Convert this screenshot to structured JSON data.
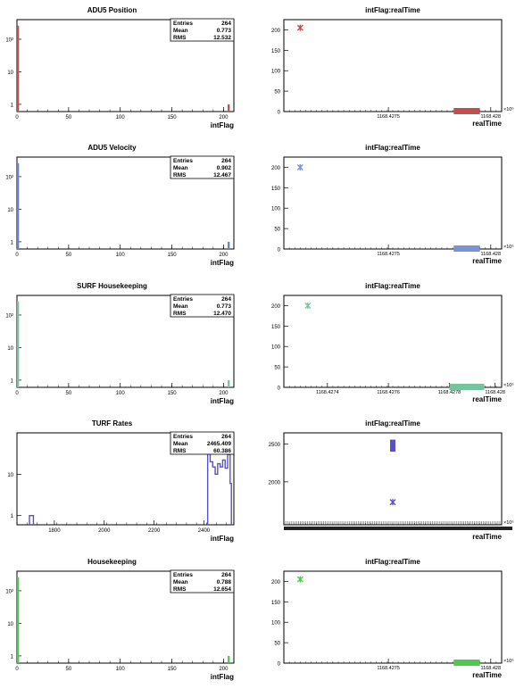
{
  "chart_data": [
    {
      "type": "bar",
      "title": "ADU5 Position",
      "xlabel": "intFlag",
      "ylabel": "",
      "log_y": true,
      "xlim": [
        0,
        210
      ],
      "ylim": [
        0.6,
        400
      ],
      "x_ticks": [
        0,
        50,
        100,
        150,
        200
      ],
      "y_ticks": [
        1,
        10,
        100
      ],
      "y_tick_labels": [
        "1",
        "10",
        "10²"
      ],
      "color": "#c0504d",
      "bins": [
        {
          "x0": 0,
          "x1": 2,
          "y": 260
        },
        {
          "x0": 204,
          "x1": 206,
          "y": 1
        }
      ],
      "stats": {
        "entries_label": "Entries",
        "entries": "264",
        "mean_label": "Mean",
        "mean": "0.773",
        "rms_label": "RMS",
        "rms": "12.532"
      }
    },
    {
      "type": "scatter",
      "title": "intFlag:realTime",
      "xlabel": "realTime",
      "ylabel": "",
      "xlim": [
        0,
        1
      ],
      "ylim": [
        0,
        225
      ],
      "y_ticks": [
        0,
        50,
        100,
        150,
        200
      ],
      "x_tick_labels": [
        {
          "label": "1168.4275",
          "pos": 0.48
        },
        {
          "label": "1168.428",
          "pos": 0.95
        }
      ],
      "exponent_label": "×10⁶",
      "color": "#c0504d",
      "points": [
        {
          "x": 0.075,
          "y": 205
        }
      ],
      "band": {
        "x0": 0.78,
        "x1": 0.9,
        "y": 0
      }
    },
    {
      "type": "bar",
      "title": "ADU5 Velocity",
      "xlabel": "intFlag",
      "ylabel": "",
      "log_y": true,
      "xlim": [
        0,
        210
      ],
      "ylim": [
        0.6,
        400
      ],
      "x_ticks": [
        0,
        50,
        100,
        150,
        200
      ],
      "y_ticks": [
        1,
        10,
        100
      ],
      "y_tick_labels": [
        "1",
        "10",
        "10²"
      ],
      "color": "#6a7fd0",
      "bins": [
        {
          "x0": 0,
          "x1": 2,
          "y": 260
        },
        {
          "x0": 204,
          "x1": 206,
          "y": 1
        }
      ],
      "stats": {
        "entries_label": "Entries",
        "entries": "264",
        "mean_label": "Mean",
        "mean": "0.902",
        "rms_label": "RMS",
        "rms": "12.467"
      }
    },
    {
      "type": "scatter",
      "title": "intFlag:realTime",
      "xlabel": "realTime",
      "ylabel": "",
      "xlim": [
        0,
        1
      ],
      "ylim": [
        0,
        225
      ],
      "y_ticks": [
        0,
        50,
        100,
        150,
        200
      ],
      "x_tick_labels": [
        {
          "label": "1168.4275",
          "pos": 0.48
        },
        {
          "label": "1168.428",
          "pos": 0.95
        }
      ],
      "exponent_label": "×10⁶",
      "color": "#7b93d6",
      "points": [
        {
          "x": 0.075,
          "y": 200
        }
      ],
      "band": {
        "x0": 0.78,
        "x1": 0.9,
        "y": 0
      }
    },
    {
      "type": "bar",
      "title": "SURF Housekeeping",
      "xlabel": "intFlag",
      "ylabel": "",
      "log_y": true,
      "xlim": [
        0,
        210
      ],
      "ylim": [
        0.6,
        400
      ],
      "x_ticks": [
        0,
        50,
        100,
        150,
        200
      ],
      "y_ticks": [
        1,
        10,
        100
      ],
      "y_tick_labels": [
        "1",
        "10",
        "10²"
      ],
      "color": "#76c49e",
      "bins": [
        {
          "x0": 0,
          "x1": 2,
          "y": 260
        },
        {
          "x0": 204,
          "x1": 206,
          "y": 1
        }
      ],
      "stats": {
        "entries_label": "Entries",
        "entries": "264",
        "mean_label": "Mean",
        "mean": "0.773",
        "rms_label": "RMS",
        "rms": "12.470"
      }
    },
    {
      "type": "scatter",
      "title": "intFlag:realTime",
      "xlabel": "realTime",
      "ylabel": "",
      "xlim": [
        0,
        1
      ],
      "ylim": [
        0,
        225
      ],
      "y_ticks": [
        0,
        50,
        100,
        150,
        200
      ],
      "x_tick_labels": [
        {
          "label": "1168.4274",
          "pos": 0.2
        },
        {
          "label": "1168.4276",
          "pos": 0.48
        },
        {
          "label": "1168.4278",
          "pos": 0.76
        },
        {
          "label": "1168.428",
          "pos": 0.97
        }
      ],
      "exponent_label": "×10⁶",
      "color": "#76c49e",
      "points": [
        {
          "x": 0.11,
          "y": 200
        }
      ],
      "band": {
        "x0": 0.76,
        "x1": 0.92,
        "y": 0
      }
    },
    {
      "type": "bar",
      "title": "TURF Rates",
      "xlabel": "intFlag",
      "ylabel": "",
      "log_y": true,
      "xlim": [
        1650,
        2520
      ],
      "ylim": [
        0.6,
        100
      ],
      "x_ticks": [
        1800,
        2000,
        2200,
        2400
      ],
      "y_ticks": [
        1,
        10
      ],
      "y_tick_labels": [
        "1",
        "10"
      ],
      "color": "#5a4fd0",
      "histogram_line": true,
      "bins": [
        {
          "x0": 1700,
          "x1": 1716,
          "y": 1
        },
        {
          "x0": 2415,
          "x1": 2425,
          "y": 55
        },
        {
          "x0": 2425,
          "x1": 2435,
          "y": 20
        },
        {
          "x0": 2435,
          "x1": 2445,
          "y": 15
        },
        {
          "x0": 2445,
          "x1": 2455,
          "y": 10
        },
        {
          "x0": 2455,
          "x1": 2465,
          "y": 18
        },
        {
          "x0": 2465,
          "x1": 2475,
          "y": 15
        },
        {
          "x0": 2475,
          "x1": 2485,
          "y": 22
        },
        {
          "x0": 2485,
          "x1": 2495,
          "y": 14
        },
        {
          "x0": 2495,
          "x1": 2505,
          "y": 30
        },
        {
          "x0": 2505,
          "x1": 2510,
          "y": 6
        }
      ],
      "stats": {
        "entries_label": "Entries",
        "entries": "264",
        "mean_label": "Mean",
        "mean": "2465.409",
        "rms_label": "RMS",
        "rms": "60.386"
      }
    },
    {
      "type": "scatter",
      "title": "intFlag:realTime",
      "xlabel": "realTime",
      "ylabel": "",
      "xlim": [
        0,
        1
      ],
      "ylim": [
        1430,
        2650
      ],
      "y_ticks": [
        2000,
        2500
      ],
      "x_tick_labels": [],
      "exponent_label": "×10⁶",
      "color": "#5a4fd0",
      "points": [
        {
          "x": 0.5,
          "y": 1730
        }
      ],
      "cluster": {
        "x": 0.5,
        "y0": 2400,
        "y1": 2560
      },
      "dense_axis": true
    },
    {
      "type": "bar",
      "title": "Housekeeping",
      "xlabel": "intFlag",
      "ylabel": "",
      "log_y": true,
      "xlim": [
        0,
        210
      ],
      "ylim": [
        0.6,
        400
      ],
      "x_ticks": [
        0,
        50,
        100,
        150,
        200
      ],
      "y_ticks": [
        1,
        10,
        100
      ],
      "y_tick_labels": [
        "1",
        "10",
        "10²"
      ],
      "color": "#4ec94e",
      "bins": [
        {
          "x0": 0,
          "x1": 2,
          "y": 260
        },
        {
          "x0": 204,
          "x1": 206,
          "y": 1
        }
      ],
      "stats": {
        "entries_label": "Entries",
        "entries": "264",
        "mean_label": "Mean",
        "mean": "0.788",
        "rms_label": "RMS",
        "rms": "12.654"
      }
    },
    {
      "type": "scatter",
      "title": "intFlag:realTime",
      "xlabel": "realTime",
      "ylabel": "",
      "xlim": [
        0,
        1
      ],
      "ylim": [
        0,
        225
      ],
      "y_ticks": [
        0,
        50,
        100,
        150,
        200
      ],
      "x_tick_labels": [
        {
          "label": "1168.4275",
          "pos": 0.48
        },
        {
          "label": "1168.428",
          "pos": 0.95
        }
      ],
      "exponent_label": "×10⁶",
      "color": "#4ec94e",
      "points": [
        {
          "x": 0.075,
          "y": 205
        }
      ],
      "band": {
        "x0": 0.78,
        "x1": 0.9,
        "y": 0
      }
    }
  ]
}
